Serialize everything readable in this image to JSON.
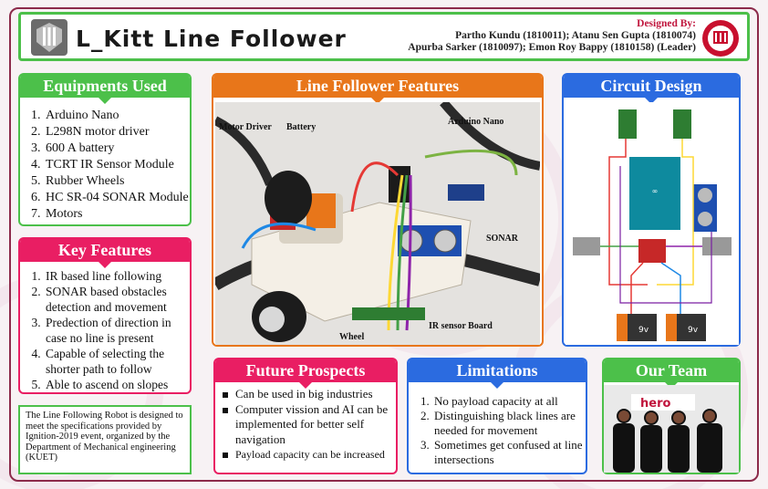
{
  "header": {
    "title": "L_Kitt Line Follower",
    "designed_by_label": "Designed By:",
    "designers_line1": "Partho Kundu (1810011);  Atanu Sen Gupta (1810074)",
    "designers_line2": "Apurba Sarker (1810097); Emon Roy Bappy (1810158) (Leader)"
  },
  "equipments": {
    "title": "Equipments Used",
    "items": [
      "Arduino Nano",
      "L298N motor driver",
      "600 A battery",
      "TCRT IR Sensor Module",
      "Rubber Wheels",
      "HC SR-04 SONAR Module",
      "Motors"
    ]
  },
  "key_features": {
    "title": "Key Features",
    "items": [
      "IR based line following",
      "SONAR based obstacles detection and movement",
      "Predection of direction in case no line is present",
      "Capable of selecting the shorter path to follow",
      "Able to ascend on slopes"
    ]
  },
  "note": "The Line Following Robot is designed to meet the specifications provided by Ignition-2019 event, organized by the Department of Mechanical engineering (KUET)",
  "line_follower": {
    "title": "Line Follower Features",
    "labels": {
      "motor_driver": "Motor Driver",
      "battery": "Battery",
      "arduino": "Arduino Nano",
      "sonar": "SONAR",
      "wheel": "Wheel",
      "ir": "IR sensor Board"
    }
  },
  "circuit": {
    "title": "Circuit Design",
    "battery_label": "9v"
  },
  "future": {
    "title": "Future Prospects",
    "items": [
      "Can be used in big industries",
      "Computer vission and AI can be implemented for better self navigation",
      "Payload capacity can be increased"
    ]
  },
  "limitations": {
    "title": "Limitations",
    "items": [
      "No payload capacity at all",
      "Distinguishing black lines are needed for movement",
      "Sometimes get confused at line intersections"
    ]
  },
  "team": {
    "title": "Our Team",
    "banner": "hero"
  },
  "colors": {
    "green": "#4cc04a",
    "pink": "#e91e63",
    "orange": "#e8761a",
    "blue": "#2b6be0",
    "maroon": "#8c2a4a"
  }
}
